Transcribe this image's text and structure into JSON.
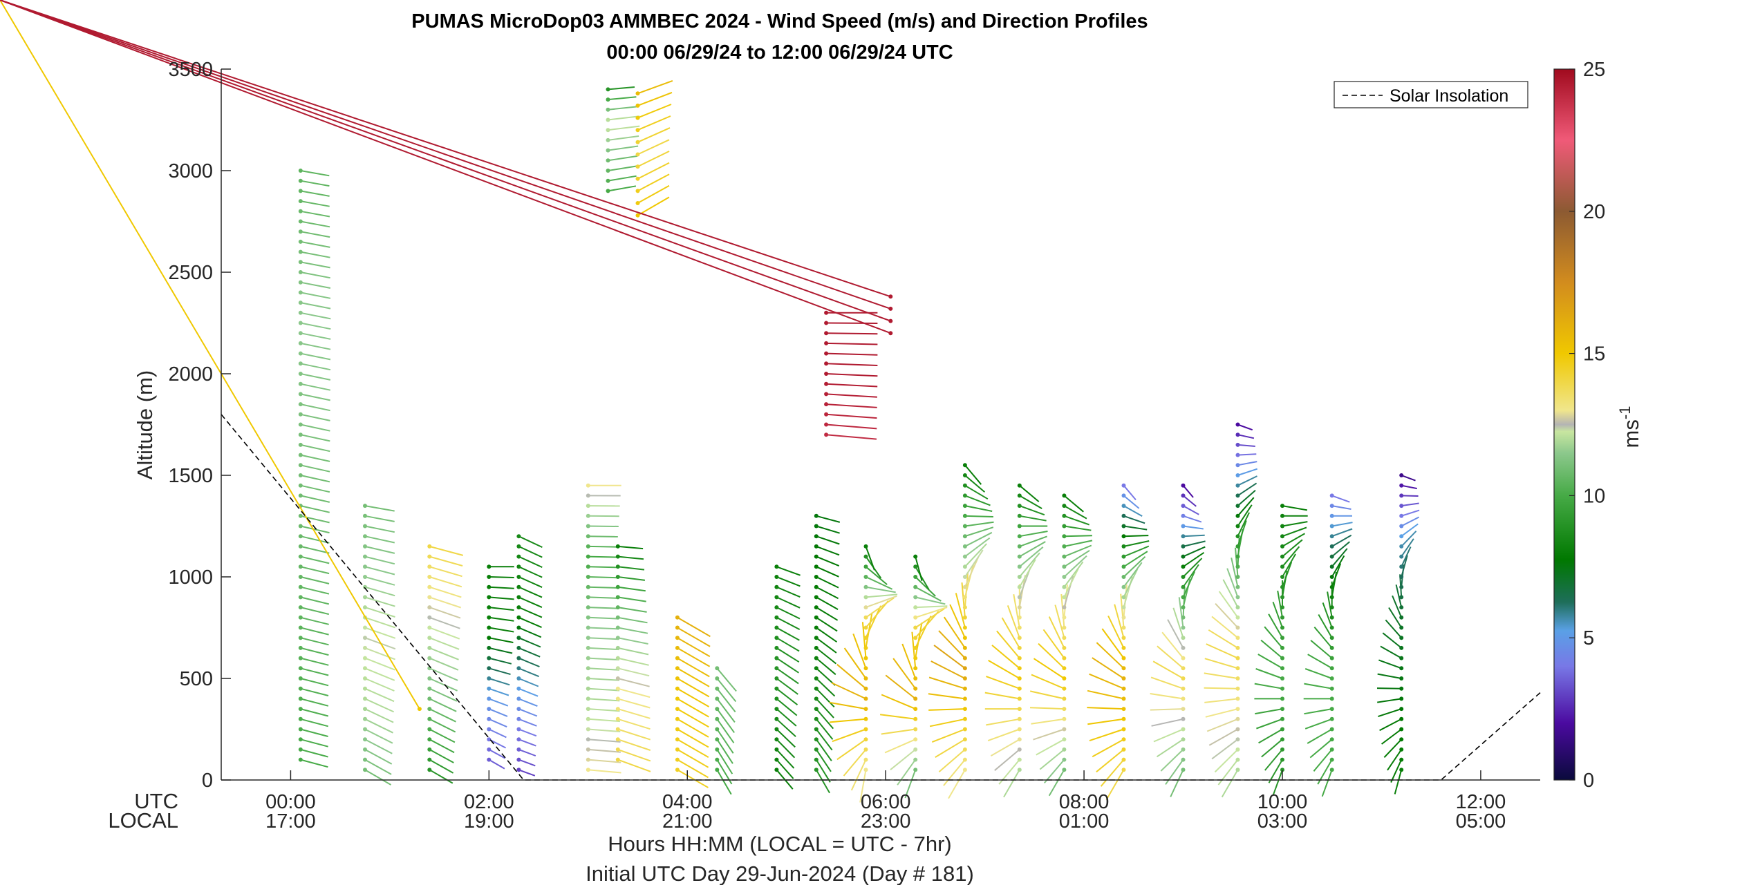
{
  "chart_data": {
    "type": "scatter",
    "subtype": "wind-barb-profile",
    "title": "PUMAS MicroDop03 AMMBEC 2024 - Wind Speed (m/s) and Direction Profiles",
    "subtitle": "00:00 06/29/24 to 12:00 06/29/24  UTC",
    "ylabel": "Altitude (m)",
    "xlabel": "Hours HH:MM  (LOCAL = UTC - 7hr)",
    "xlabel2": "Initial UTC Day 29-Jun-2024 (Day # 181)",
    "xlim_hours": [
      -0.7,
      12.6
    ],
    "ylim": [
      0,
      3500
    ],
    "yticks": [
      0,
      500,
      1000,
      1500,
      2000,
      2500,
      3000,
      3500
    ],
    "ytick_labels": [
      "0",
      "500",
      "1000",
      "1500",
      "2000",
      "2500",
      "3000",
      "3500"
    ],
    "row_labels": {
      "utc": "UTC",
      "local": "LOCAL"
    },
    "xticks_hours": [
      0,
      2,
      4,
      6,
      8,
      10,
      12
    ],
    "xtick_labels_utc": [
      "00:00",
      "02:00",
      "04:00",
      "06:00",
      "08:00",
      "10:00",
      "12:00"
    ],
    "xtick_labels_local": [
      "17:00",
      "19:00",
      "21:00",
      "23:00",
      "01:00",
      "03:00",
      "05:00"
    ],
    "colorbar": {
      "label_base": "ms",
      "label_exp": "-1",
      "range": [
        0,
        25
      ],
      "ticks": [
        0,
        5,
        10,
        15,
        20,
        25
      ],
      "tick_labels": [
        "0",
        "5",
        "10",
        "15",
        "20",
        "25"
      ]
    },
    "legend": {
      "entries": [
        "Solar Insolation"
      ],
      "placement": "top-right"
    },
    "solar_insolation": {
      "hours": [
        -0.7,
        2.35,
        11.6,
        12.6
      ],
      "altitude": [
        1800,
        0,
        0,
        430
      ]
    },
    "profiles": [
      {
        "t": 0.1,
        "z": [
          100,
          3000,
          50
        ],
        "spd": [
          10,
          10.5,
          11,
          11.5,
          10.5
        ],
        "dir": [
          285,
          280
        ]
      },
      {
        "t": 0.75,
        "z": [
          50,
          1350,
          50
        ],
        "spd": [
          11,
          12,
          12.5,
          11.5,
          11
        ],
        "dir": [
          300,
          280
        ]
      },
      {
        "t": 1.3,
        "z": [
          350,
          3450,
          3450
        ],
        "spd": [
          15
        ],
        "dir": [
          250
        ]
      },
      {
        "t": 1.4,
        "z": [
          50,
          1150,
          50
        ],
        "spd": [
          9,
          11,
          12.5,
          14
        ],
        "dir": [
          300,
          285
        ]
      },
      {
        "t": 2.0,
        "z": [
          100,
          1050,
          50
        ],
        "spd": [
          3.5,
          5,
          8,
          8
        ],
        "dir": [
          300,
          270
        ]
      },
      {
        "t": 2.3,
        "z": [
          50,
          1200,
          50
        ],
        "spd": [
          3,
          5,
          8,
          8.5
        ],
        "dir": [
          290,
          295
        ]
      },
      {
        "t": 3.0,
        "z": [
          50,
          1450,
          50
        ],
        "spd": [
          13,
          12,
          11.5,
          10,
          13
        ],
        "dir": [
          275,
          270
        ]
      },
      {
        "t": 3.2,
        "z": [
          2900,
          3400,
          50
        ],
        "spd": [
          10,
          11,
          12.5,
          9
        ],
        "dir": [
          260,
          265
        ]
      },
      {
        "t": 3.3,
        "z": [
          100,
          1150,
          50
        ],
        "spd": [
          14,
          13,
          11,
          8
        ],
        "dir": [
          290,
          275
        ]
      },
      {
        "t": 3.5,
        "z": [
          2780,
          3400,
          60
        ],
        "spd": [
          15,
          14,
          15.5
        ],
        "dir": [
          240,
          250
        ]
      },
      {
        "t": 3.9,
        "z": [
          50,
          800,
          50
        ],
        "spd": [
          14.5,
          15,
          16
        ],
        "dir": [
          300,
          300
        ]
      },
      {
        "t": 4.3,
        "z": [
          50,
          550,
          50
        ],
        "spd": [
          10,
          11
        ],
        "dir": [
          330,
          320
        ]
      },
      {
        "t": 4.9,
        "z": [
          50,
          1050,
          50
        ],
        "spd": [
          8,
          9,
          8
        ],
        "dir": [
          320,
          290
        ]
      },
      {
        "t": 5.3,
        "z": [
          50,
          1300,
          50
        ],
        "spd": [
          9,
          8,
          7.5
        ],
        "dir": [
          330,
          285
        ]
      },
      {
        "t": 5.4,
        "z": [
          1700,
          2300,
          50
        ],
        "spd": [
          24,
          24.5,
          24.5
        ],
        "dir": [
          275,
          270
        ]
      },
      {
        "t": 5.8,
        "z": [
          50,
          1150,
          50
        ],
        "spd": [
          13,
          16,
          14,
          8
        ],
        "dir": [
          10,
          340
        ]
      },
      {
        "t": 6.05,
        "z": [
          2200,
          2380,
          60
        ],
        "spd": [
          24.5
        ],
        "dir": [
          260
        ]
      },
      {
        "t": 6.3,
        "z": [
          50,
          1100,
          50
        ],
        "spd": [
          11,
          16,
          14,
          8
        ],
        "dir": [
          20,
          345
        ]
      },
      {
        "t": 6.8,
        "z": [
          50,
          1550,
          50
        ],
        "spd": [
          13,
          16.5,
          12,
          8
        ],
        "dir": [
          30,
          320
        ]
      },
      {
        "t": 7.35,
        "z": [
          50,
          1450,
          50
        ],
        "spd": [
          12,
          15,
          12,
          8
        ],
        "dir": [
          30,
          310
        ]
      },
      {
        "t": 7.8,
        "z": [
          50,
          1400,
          50
        ],
        "spd": [
          11,
          15,
          12,
          8
        ],
        "dir": [
          30,
          310
        ]
      },
      {
        "t": 8.4,
        "z": [
          50,
          1450,
          50
        ],
        "spd": [
          14,
          16,
          11,
          4
        ],
        "dir": [
          30,
          320
        ]
      },
      {
        "t": 9.0,
        "z": [
          50,
          1450,
          50
        ],
        "spd": [
          11,
          14,
          9,
          2
        ],
        "dir": [
          25,
          320
        ]
      },
      {
        "t": 9.55,
        "z": [
          50,
          1770,
          50
        ],
        "spd": [
          12,
          14,
          9,
          2
        ],
        "dir": [
          30,
          290
        ]
      },
      {
        "t": 10.0,
        "z": [
          50,
          1350,
          50
        ],
        "spd": [
          9,
          10,
          9,
          8
        ],
        "dir": [
          20,
          280
        ]
      },
      {
        "t": 10.5,
        "z": [
          50,
          1420,
          50
        ],
        "spd": [
          10,
          10,
          8,
          4
        ],
        "dir": [
          20,
          290
        ]
      },
      {
        "t": 11.2,
        "z": [
          50,
          1530,
          50
        ],
        "spd": [
          8,
          7.5,
          7,
          5.5,
          1
        ],
        "dir": [
          15,
          300
        ]
      }
    ]
  }
}
